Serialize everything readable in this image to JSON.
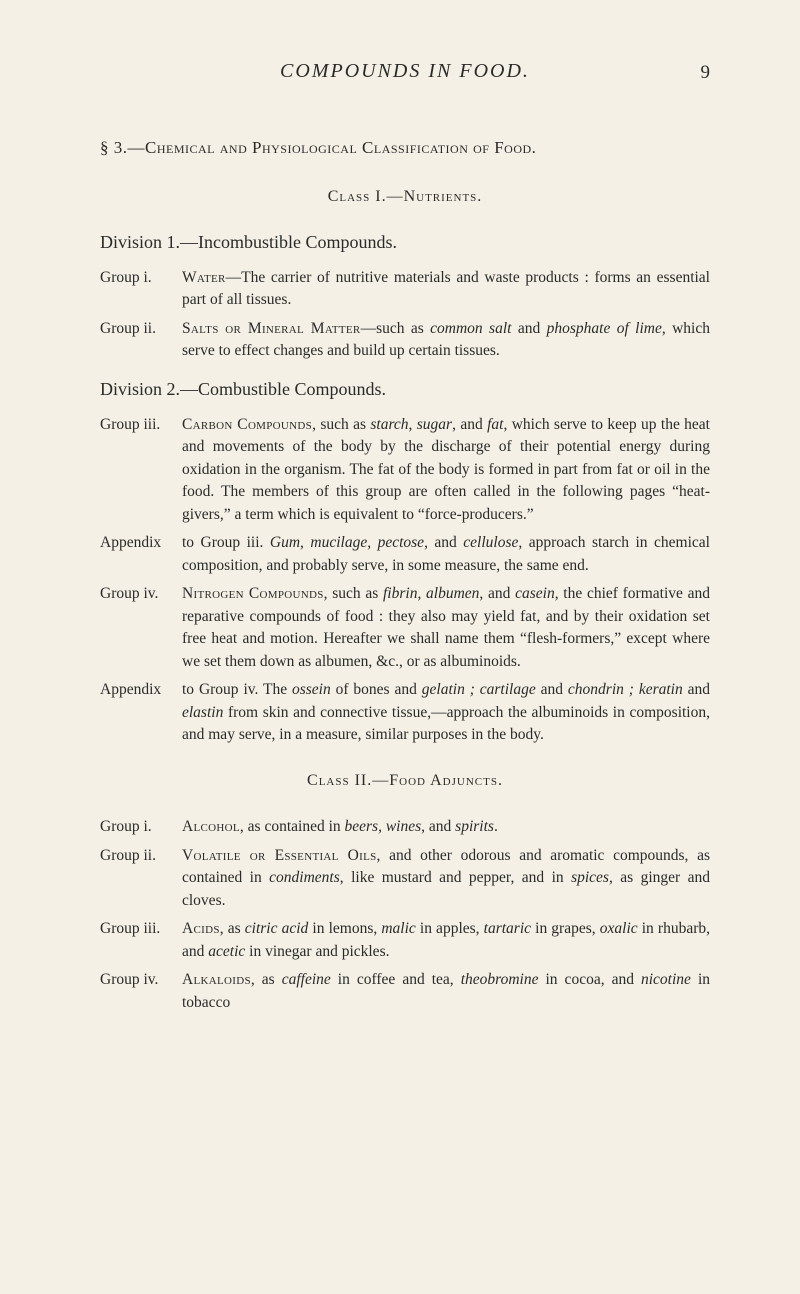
{
  "runningTitle": "COMPOUNDS IN FOOD.",
  "pageNumber": "9",
  "sectionHead": "§ 3.—Chemical and Physiological Classification of Food.",
  "class1Head": "Class I.—Nutrients.",
  "div1Head": "Division 1.—Incombustible Compounds.",
  "g1": {
    "label": "Group i.",
    "lead": "Water",
    "body1": "—The carrier of nutritive materials and waste products :",
    "body2": "forms an essential part of all tissues."
  },
  "g2": {
    "label": "Group ii.",
    "lead": "Salts or Mineral Matter",
    "mid1": "—such as ",
    "it1": "common salt",
    "mid2": " and ",
    "it2": "phosphate of lime",
    "tail": ", which serve to effect changes and build up certain tissues."
  },
  "div2Head": "Division 2.—Combustible Compounds.",
  "g3": {
    "label": "Group iii.",
    "lead": "Carbon Compounds",
    "m1": ", such as ",
    "it1": "starch, sugar",
    "m2": ", and ",
    "it2": "fat",
    "tail": ", which serve to keep up the heat and movements of the body by the discharge of their potential energy during oxidation in the organism. The fat of the body is formed in part from fat or oil in the food. The members of this group are often called in the following pages “heat-givers,” a term which is equivalent to “force-producers.”"
  },
  "ap1": {
    "label": "Appendix",
    "pre": "to Group iii. ",
    "it1": "Gum, mucilage, pectose",
    "m1": ", and ",
    "it2": "cellulose",
    "tail": ", approach starch in chemical composition, and probably serve, in some measure, the same end."
  },
  "g4": {
    "label": "Group iv.",
    "lead": "Nitrogen Compounds",
    "m1": ", such as ",
    "it1": "fibrin, albumen",
    "m2": ", and ",
    "it2": "casein",
    "tail": ", the chief formative and reparative compounds of food : they also may yield fat, and by their oxidation set free heat and motion. Hereafter we shall name them “flesh-formers,” except where we set them down as albumen, &c., or as albuminoids."
  },
  "ap2": {
    "label": "Appendix",
    "pre": "to Group iv. The ",
    "it1": "ossein",
    "m1": " of bones and ",
    "it2": "gelatin ; cartilage",
    "m2": " and ",
    "it3": "chondrin ; keratin",
    "m3": " and ",
    "it4": "elastin",
    "tail": " from skin and connective tissue,—approach the albuminoids in composition, and may serve, in a measure, similar purposes in the body."
  },
  "class2Head": "Class II.—Food Adjuncts.",
  "b1": {
    "label": "Group i.",
    "lead": "Alcohol",
    "m1": ", as contained in ",
    "it1": "beers, wines",
    "m2": ", and ",
    "it2": "spirits",
    "tail": "."
  },
  "b2": {
    "label": "Group ii.",
    "lead": "Volatile or Essential Oils",
    "m1": ", and other odorous and aromatic compounds, as contained in ",
    "it1": "condiments",
    "m2": ", like mustard and pepper, and in ",
    "it2": "spices",
    "tail": ", as ginger and cloves."
  },
  "b3": {
    "label": "Group iii.",
    "lead": "Acids",
    "m1": ", as ",
    "it1": "citric acid",
    "m2": " in lemons, ",
    "it2": "malic",
    "m3": " in apples, ",
    "it3": "tartaric",
    "m4": " in grapes, ",
    "it4": "oxalic",
    "m5": " in rhubarb, and ",
    "it5": "acetic",
    "tail": " in vinegar and pickles."
  },
  "b4": {
    "label": "Group iv.",
    "lead": "Alkaloids",
    "m1": ", as ",
    "it1": "caffeine",
    "m2": " in coffee and tea, ",
    "it2": "theobromine",
    "m3": " in cocoa, and ",
    "it3": "nicotine",
    "tail": " in tobacco"
  }
}
